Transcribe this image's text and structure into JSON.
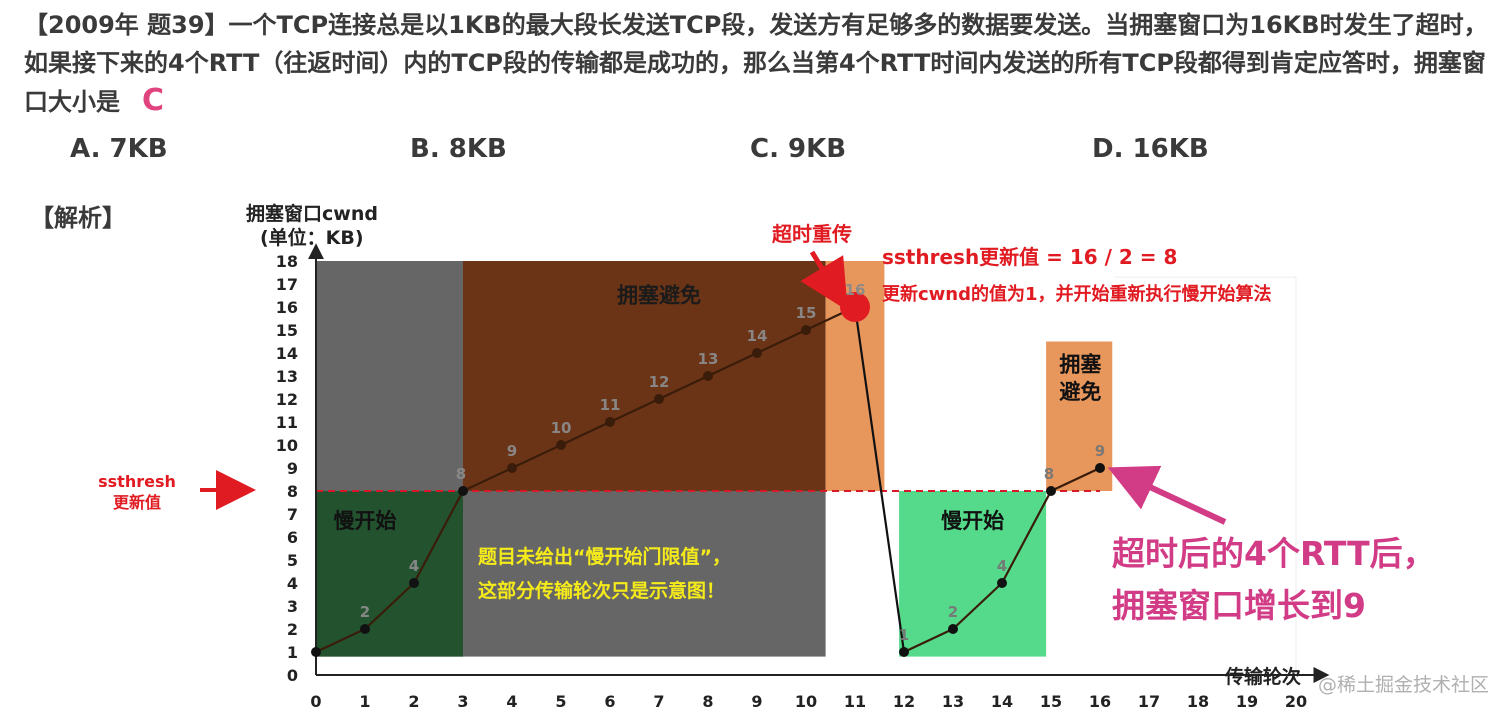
{
  "question": {
    "text": "【2009年 题39】一个TCP连接总是以1KB的最大段长发送TCP段，发送方有足够多的数据要发送。当拥塞窗口为16KB时发生了超时，如果接下来的4个RTT（往返时间）内的TCP段的传输都是成功的，那么当第4个RTT时间内发送的所有TCP段都得到肯定应答时，拥塞窗口大小是",
    "answer": "C"
  },
  "options": [
    "A. 7KB",
    "B. 8KB",
    "C. 9KB",
    "D. 16KB"
  ],
  "analysis_label": "【解析】",
  "colors": {
    "grey_region": "#666666",
    "brown_region": "#6b3416",
    "dark_green_region": "#23522f",
    "orange_region": "#e8975c",
    "light_green_region": "#55d98a",
    "threshold_line": "#d9182a",
    "red": "#e11b22",
    "magenta": "#d23c86",
    "yellow_note": "#f5ea1a",
    "line": "#3a1c0a"
  },
  "chart_data": {
    "type": "line",
    "ylabel": "拥塞窗口cwnd",
    "ylabel_unit": "(单位：KB)",
    "xlabel": "传输轮次",
    "x_ticks": [
      0,
      1,
      2,
      3,
      4,
      5,
      6,
      7,
      8,
      9,
      10,
      11,
      12,
      13,
      14,
      15,
      16,
      17,
      18,
      19,
      20
    ],
    "y_ticks": [
      0,
      1,
      2,
      3,
      4,
      5,
      6,
      7,
      8,
      9,
      10,
      11,
      12,
      13,
      14,
      15,
      16,
      17,
      18
    ],
    "xlim": [
      0,
      20
    ],
    "ylim": [
      0,
      18
    ],
    "series": [
      {
        "x": [
          0,
          1,
          2,
          3,
          4,
          5,
          6,
          7,
          8,
          9,
          10,
          11
        ],
        "y": [
          1,
          2,
          4,
          8,
          9,
          10,
          11,
          12,
          13,
          14,
          15,
          16
        ]
      },
      {
        "x": [
          11,
          12
        ],
        "y": [
          16,
          1
        ]
      },
      {
        "x": [
          12,
          13,
          14,
          15,
          16
        ],
        "y": [
          1,
          2,
          4,
          8,
          9
        ]
      }
    ],
    "point_labels": [
      {
        "x": 1,
        "y": 2,
        "text": "2"
      },
      {
        "x": 2,
        "y": 4,
        "text": "4"
      },
      {
        "x": 3,
        "y": 8,
        "text": "8"
      },
      {
        "x": 4,
        "y": 9,
        "text": "9"
      },
      {
        "x": 5,
        "y": 10,
        "text": "10"
      },
      {
        "x": 6,
        "y": 11,
        "text": "11"
      },
      {
        "x": 7,
        "y": 12,
        "text": "12"
      },
      {
        "x": 8,
        "y": 13,
        "text": "13"
      },
      {
        "x": 9,
        "y": 14,
        "text": "14"
      },
      {
        "x": 10,
        "y": 15,
        "text": "15"
      },
      {
        "x": 11,
        "y": 16,
        "text": "16"
      },
      {
        "x": 12,
        "y": 1,
        "text": "1"
      },
      {
        "x": 13,
        "y": 2,
        "text": "2"
      },
      {
        "x": 14,
        "y": 4,
        "text": "4"
      },
      {
        "x": 15,
        "y": 8,
        "text": "8"
      },
      {
        "x": 16,
        "y": 9,
        "text": "9"
      }
    ],
    "threshold": {
      "y": 8,
      "label_line1": "ssthresh",
      "label_line2": "更新值"
    },
    "regions": [
      {
        "name": "slow-start-1",
        "label": "慢开始"
      },
      {
        "name": "congestion-avoidance-1",
        "label": "拥塞避免"
      },
      {
        "name": "slow-start-2",
        "label": "慢开始"
      },
      {
        "name": "congestion-avoidance-2",
        "label_line1": "拥塞",
        "label_line2": "避免"
      }
    ],
    "annotations": {
      "timeout": "超时重传",
      "ssthresh_update": "ssthresh更新值 = 16 / 2 = 8",
      "cwnd_reset": "更新cwnd的值为1，并开始重新执行慢开始算法",
      "note_line1": "题目未给出“慢开始门限值”，",
      "note_line2": "这部分传输轮次只是示意图！",
      "result_line1": "超时后的4个RTT后，",
      "result_line2": "拥塞窗口增长到9"
    }
  },
  "watermark": "@稀土掘金技术社区"
}
